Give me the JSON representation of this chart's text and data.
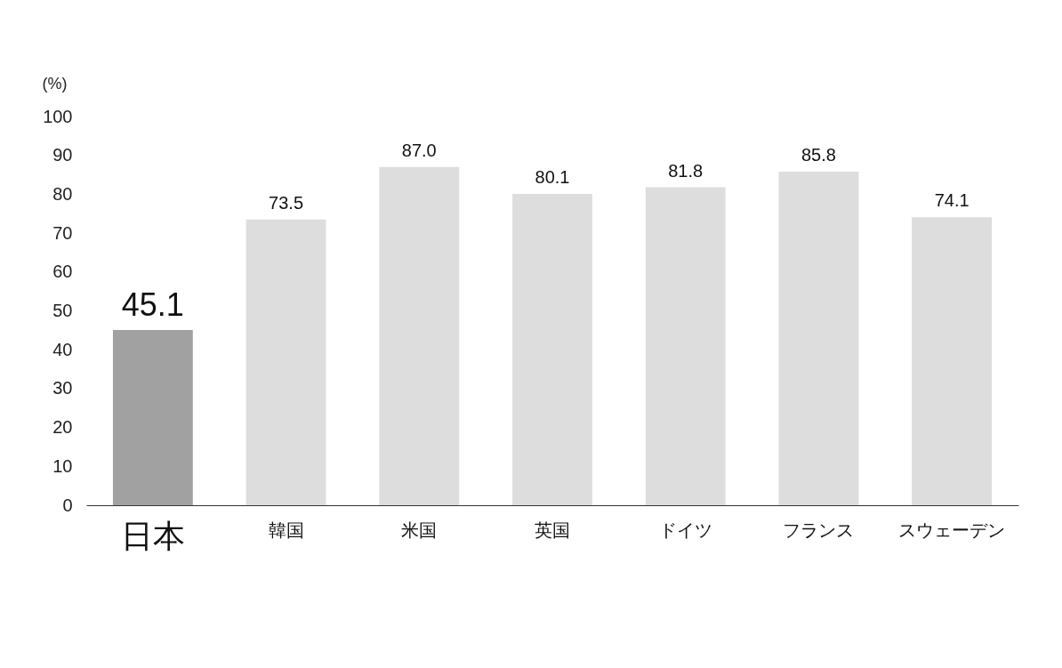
{
  "chart_data": {
    "type": "bar",
    "ylabel": "(%)",
    "categories": [
      "日本",
      "韓国",
      "米国",
      "英国",
      "ドイツ",
      "フランス",
      "スウェーデン"
    ],
    "values": [
      45.1,
      73.5,
      87.0,
      80.1,
      81.8,
      85.8,
      74.1
    ],
    "colors": [
      "#a0a1a0",
      "#dcdddc",
      "#dcdddc",
      "#dcdddc",
      "#dcdddc",
      "#dcdddc",
      "#dcdddc"
    ],
    "value_labels": [
      "45.1",
      "73.5",
      "87.0",
      "80.1",
      "81.8",
      "85.8",
      "74.1"
    ],
    "ylim": [
      0,
      100
    ],
    "yticks": [
      0,
      10,
      20,
      30,
      40,
      50,
      60,
      70,
      80,
      90,
      100
    ],
    "grid": false
  }
}
